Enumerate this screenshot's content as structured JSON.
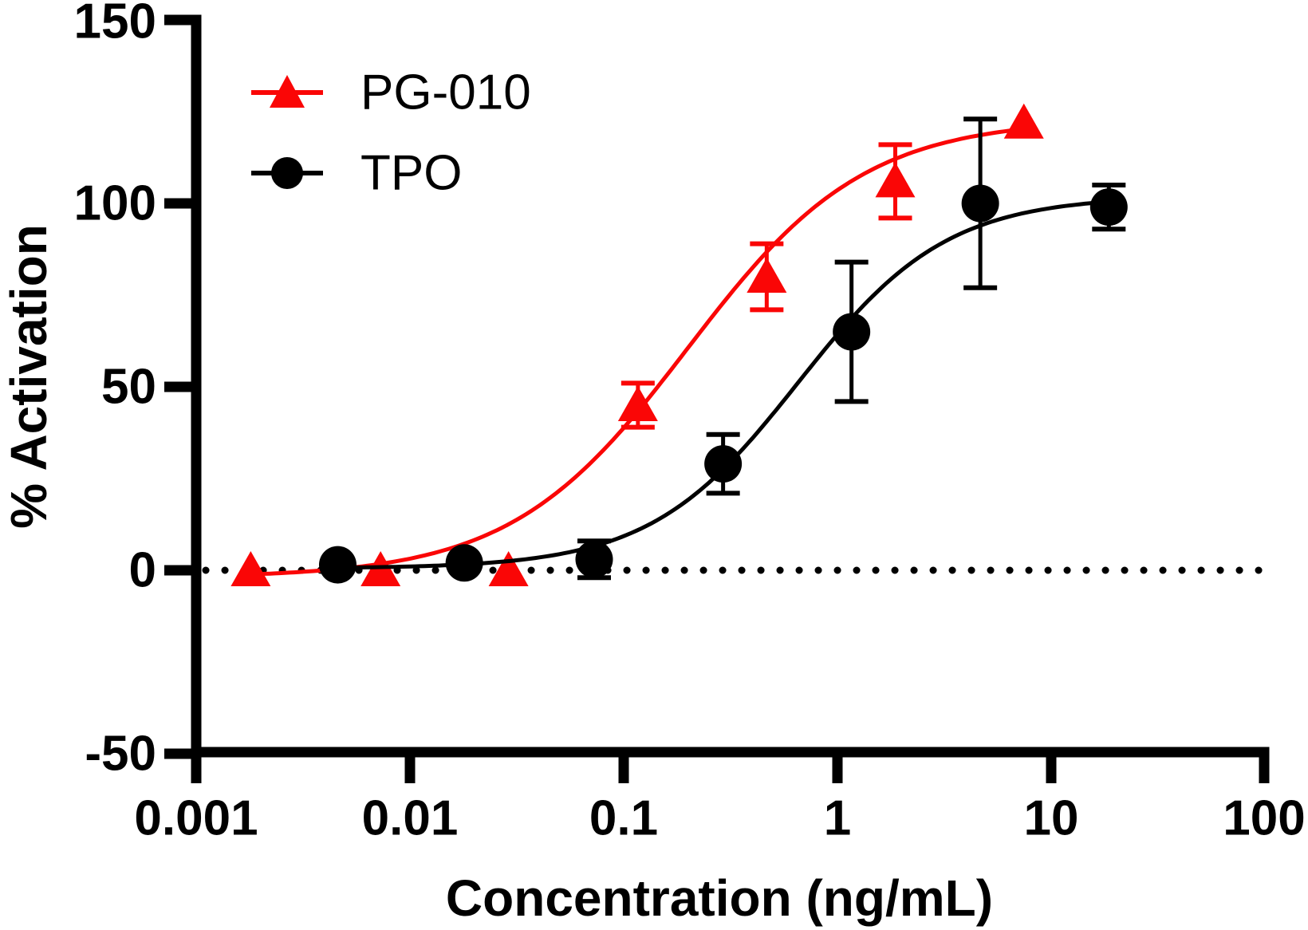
{
  "figure": {
    "xlabel": "Concentration (ng/mL)",
    "ylabel": "% Activation",
    "x_ticks": [
      "0.001",
      "0.01",
      "0.1",
      "1",
      "10",
      "100"
    ],
    "y_ticks": [
      "150",
      "100",
      "50",
      "0",
      "-50"
    ]
  },
  "legend": {
    "position": "top-left-inside",
    "items": [
      {
        "label": "PG-010",
        "marker": "triangle",
        "color": "#fa0606"
      },
      {
        "label": "TPO",
        "marker": "circle",
        "color": "#000000"
      }
    ]
  },
  "chart_data": {
    "type": "scatter",
    "subtype": "dose-response-curve",
    "x_scale": "log",
    "xlim": [
      0.001,
      100
    ],
    "ylim": [
      -50,
      150
    ],
    "xlabel": "Concentration (ng/mL)",
    "ylabel": "% Activation",
    "grid": false,
    "zero_reference_line": "dotted",
    "series": [
      {
        "name": "PG-010",
        "marker": "triangle",
        "color": "#fa0606",
        "x": [
          0.0018,
          0.0073,
          0.029,
          0.117,
          0.469,
          1.875,
          7.5
        ],
        "y": [
          0,
          0,
          0,
          45,
          80,
          106,
          122
        ],
        "yerr": [
          0,
          0,
          0,
          6,
          9,
          10,
          0
        ],
        "fit_4pl": {
          "bottom": -2,
          "top": 123,
          "ec50": 0.2,
          "hill": 1.05
        }
      },
      {
        "name": "TPO",
        "marker": "circle",
        "color": "#000000",
        "x": [
          0.0046,
          0.018,
          0.073,
          0.293,
          1.17,
          4.69,
          18.75
        ],
        "y": [
          1.5,
          2,
          3,
          29,
          65,
          100,
          99
        ],
        "yerr": [
          0,
          0,
          5,
          8,
          19,
          23,
          6
        ],
        "fit_4pl": {
          "bottom": 0.5,
          "top": 102,
          "ec50": 0.66,
          "hill": 1.25
        }
      }
    ]
  }
}
